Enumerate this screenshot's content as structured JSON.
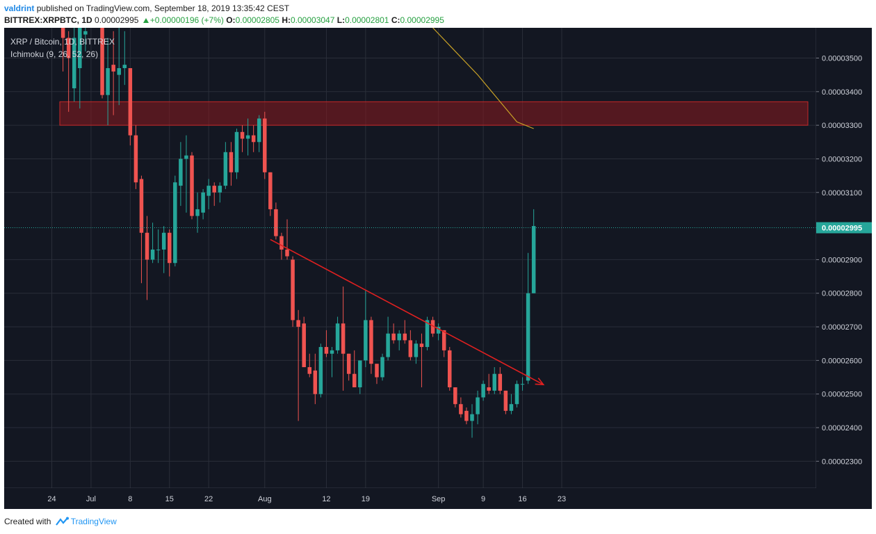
{
  "header": {
    "username": "valdrint",
    "published_text": "published on TradingView.com, September 18, 2019 13:35:42 CEST",
    "symbol": "BITTREX:XRPBTC, 1D",
    "price": "0.00002995",
    "change": "+0.00000196 (+7%)",
    "open_label": "O:",
    "open": "0.00002805",
    "high_label": "H:",
    "high": "0.00003047",
    "low_label": "L:",
    "low": "0.00002801",
    "close_label": "C:",
    "close": "0.00002995"
  },
  "footer": {
    "created_with": "Created with",
    "brand": "TradingView"
  },
  "chart_data": {
    "type": "candlestick",
    "title": "XRP / Bitcoin, 1D, BITTREX",
    "indicator": "Ichimoku (9, 26, 52, 26)",
    "ylim": [
      2.22e-05,
      3.59e-05
    ],
    "y_ticks": [
      "0.00003500",
      "0.00003400",
      "0.00003300",
      "0.00003200",
      "0.00003100",
      "0.00002900",
      "0.00002800",
      "0.00002700",
      "0.00002600",
      "0.00002500",
      "0.00002400",
      "0.00002300"
    ],
    "x_ticks": [
      {
        "label": "24",
        "date": "2019-06-24"
      },
      {
        "label": "Jul",
        "date": "2019-07-01"
      },
      {
        "label": "8",
        "date": "2019-07-08"
      },
      {
        "label": "15",
        "date": "2019-07-15"
      },
      {
        "label": "22",
        "date": "2019-07-22"
      },
      {
        "label": "Aug",
        "date": "2019-08-01"
      },
      {
        "label": "12",
        "date": "2019-08-12"
      },
      {
        "label": "19",
        "date": "2019-08-19"
      },
      {
        "label": "Sep",
        "date": "2019-09-01"
      },
      {
        "label": "9",
        "date": "2019-09-09"
      },
      {
        "label": "16",
        "date": "2019-09-16"
      },
      {
        "label": "23",
        "date": "2019-09-23"
      }
    ],
    "last_price": 2.995e-05,
    "last_price_label": "0.00002995",
    "resistance_zone": [
      3.3e-05,
      3.37e-05
    ],
    "trendline": [
      {
        "date": "2019-08-02",
        "value": 2.96e-05
      },
      {
        "date": "2019-09-18",
        "value": 2.53e-05
      }
    ],
    "cloud_line": [
      {
        "date": "2019-08-31",
        "value": 3.59e-05
      },
      {
        "date": "2019-09-04",
        "value": 3.52e-05
      },
      {
        "date": "2019-09-08",
        "value": 3.45e-05
      },
      {
        "date": "2019-09-12",
        "value": 3.37e-05
      },
      {
        "date": "2019-09-15",
        "value": 3.31e-05
      },
      {
        "date": "2019-09-18",
        "value": 3.29e-05
      }
    ],
    "colors": {
      "up": "#26a69a",
      "down": "#ef5350",
      "background": "#131722",
      "grid": "#2a2e39",
      "trendline": "#e02020",
      "zone": "#8b1a1f",
      "cloud_line": "#c9a227"
    },
    "candles": [
      {
        "date": "2019-06-26",
        "o": 3.59e-05,
        "h": 3.61e-05,
        "l": 3.46e-05,
        "c": 3.56e-05
      },
      {
        "date": "2019-06-27",
        "o": 3.56e-05,
        "h": 3.58e-05,
        "l": 3.34e-05,
        "c": 3.5e-05
      },
      {
        "date": "2019-06-28",
        "o": 3.41e-05,
        "h": 3.6e-05,
        "l": 3.37e-05,
        "c": 3.56e-05
      },
      {
        "date": "2019-06-29",
        "o": 3.47e-05,
        "h": 3.6e-05,
        "l": 3.35e-05,
        "c": 3.59e-05
      },
      {
        "date": "2019-06-30",
        "o": 3.57e-05,
        "h": 3.61e-05,
        "l": 3.52e-05,
        "c": 3.58e-05
      },
      {
        "date": "2019-07-03",
        "o": 3.61e-05,
        "h": 3.61e-05,
        "l": 3.38e-05,
        "c": 3.39e-05
      },
      {
        "date": "2019-07-04",
        "o": 3.39e-05,
        "h": 3.56e-05,
        "l": 3.3e-05,
        "c": 3.47e-05
      },
      {
        "date": "2019-07-05",
        "o": 3.48e-05,
        "h": 3.58e-05,
        "l": 3.33e-05,
        "c": 3.46e-05
      },
      {
        "date": "2019-07-06",
        "o": 3.45e-05,
        "h": 3.61e-05,
        "l": 3.36e-05,
        "c": 3.47e-05
      },
      {
        "date": "2019-07-07",
        "o": 3.47e-05,
        "h": 3.58e-05,
        "l": 3.42e-05,
        "c": 3.48e-05
      },
      {
        "date": "2019-07-08",
        "o": 3.47e-05,
        "h": 3.47e-05,
        "l": 3.24e-05,
        "c": 3.27e-05
      },
      {
        "date": "2019-07-09",
        "o": 3.27e-05,
        "h": 3.3e-05,
        "l": 3.11e-05,
        "c": 3.13e-05
      },
      {
        "date": "2019-07-10",
        "o": 3.14e-05,
        "h": 3.15e-05,
        "l": 2.83e-05,
        "c": 2.98e-05
      },
      {
        "date": "2019-07-11",
        "o": 2.98e-05,
        "h": 3.03e-05,
        "l": 2.78e-05,
        "c": 2.9e-05
      },
      {
        "date": "2019-07-12",
        "o": 2.9e-05,
        "h": 3.01e-05,
        "l": 2.89e-05,
        "c": 2.93e-05
      },
      {
        "date": "2019-07-13",
        "o": 2.93e-05,
        "h": 2.99e-05,
        "l": 2.89e-05,
        "c": 2.93e-05
      },
      {
        "date": "2019-07-14",
        "o": 2.93e-05,
        "h": 3e-05,
        "l": 2.86e-05,
        "c": 2.98e-05
      },
      {
        "date": "2019-07-15",
        "o": 2.98e-05,
        "h": 2.99e-05,
        "l": 2.85e-05,
        "c": 2.89e-05
      },
      {
        "date": "2019-07-16",
        "o": 2.89e-05,
        "h": 3.15e-05,
        "l": 2.88e-05,
        "c": 3.13e-05
      },
      {
        "date": "2019-07-17",
        "o": 3.12e-05,
        "h": 3.25e-05,
        "l": 3.06e-05,
        "c": 3.2e-05
      },
      {
        "date": "2019-07-18",
        "o": 3.2e-05,
        "h": 3.27e-05,
        "l": 3.04e-05,
        "c": 3.21e-05
      },
      {
        "date": "2019-07-19",
        "o": 3.21e-05,
        "h": 3.22e-05,
        "l": 3.02e-05,
        "c": 3.03e-05
      },
      {
        "date": "2019-07-20",
        "o": 3.03e-05,
        "h": 3.1e-05,
        "l": 2.98e-05,
        "c": 3.05e-05
      },
      {
        "date": "2019-07-21",
        "o": 3.04e-05,
        "h": 3.11e-05,
        "l": 3.02e-05,
        "c": 3.1e-05
      },
      {
        "date": "2019-07-22",
        "o": 3.09e-05,
        "h": 3.14e-05,
        "l": 3.05e-05,
        "c": 3.12e-05
      },
      {
        "date": "2019-07-23",
        "o": 3.12e-05,
        "h": 3.13e-05,
        "l": 3.06e-05,
        "c": 3.1e-05
      },
      {
        "date": "2019-07-24",
        "o": 3.1e-05,
        "h": 3.13e-05,
        "l": 3.07e-05,
        "c": 3.12e-05
      },
      {
        "date": "2019-07-25",
        "o": 3.12e-05,
        "h": 3.25e-05,
        "l": 3.11e-05,
        "c": 3.22e-05
      },
      {
        "date": "2019-07-26",
        "o": 3.22e-05,
        "h": 3.25e-05,
        "l": 3.12e-05,
        "c": 3.16e-05
      },
      {
        "date": "2019-07-27",
        "o": 3.16e-05,
        "h": 3.29e-05,
        "l": 3.14e-05,
        "c": 3.28e-05
      },
      {
        "date": "2019-07-28",
        "o": 3.28e-05,
        "h": 3.3e-05,
        "l": 3.22e-05,
        "c": 3.26e-05
      },
      {
        "date": "2019-07-29",
        "o": 3.26e-05,
        "h": 3.32e-05,
        "l": 3.21e-05,
        "c": 3.27e-05
      },
      {
        "date": "2019-07-30",
        "o": 3.27e-05,
        "h": 3.3e-05,
        "l": 3.22e-05,
        "c": 3.25e-05
      },
      {
        "date": "2019-07-31",
        "o": 3.25e-05,
        "h": 3.33e-05,
        "l": 3.22e-05,
        "c": 3.32e-05
      },
      {
        "date": "2019-08-01",
        "o": 3.32e-05,
        "h": 3.34e-05,
        "l": 3.14e-05,
        "c": 3.16e-05
      },
      {
        "date": "2019-08-02",
        "o": 3.16e-05,
        "h": 3.16e-05,
        "l": 3.03e-05,
        "c": 3.05e-05
      },
      {
        "date": "2019-08-03",
        "o": 3.05e-05,
        "h": 3.07e-05,
        "l": 2.96e-05,
        "c": 2.97e-05
      },
      {
        "date": "2019-08-04",
        "o": 2.97e-05,
        "h": 2.98e-05,
        "l": 2.9e-05,
        "c": 2.93e-05
      },
      {
        "date": "2019-08-05",
        "o": 2.93e-05,
        "h": 3.02e-05,
        "l": 2.9e-05,
        "c": 2.91e-05
      },
      {
        "date": "2019-08-06",
        "o": 2.9e-05,
        "h": 2.91e-05,
        "l": 2.7e-05,
        "c": 2.72e-05
      },
      {
        "date": "2019-08-07",
        "o": 2.72e-05,
        "h": 2.75e-05,
        "l": 2.42e-05,
        "c": 2.7e-05
      },
      {
        "date": "2019-08-08",
        "o": 2.71e-05,
        "h": 2.73e-05,
        "l": 2.58e-05,
        "c": 2.58e-05
      },
      {
        "date": "2019-08-09",
        "o": 2.58e-05,
        "h": 2.62e-05,
        "l": 2.55e-05,
        "c": 2.56e-05
      },
      {
        "date": "2019-08-10",
        "o": 2.57e-05,
        "h": 2.62e-05,
        "l": 2.47e-05,
        "c": 2.5e-05
      },
      {
        "date": "2019-08-11",
        "o": 2.5e-05,
        "h": 2.65e-05,
        "l": 2.49e-05,
        "c": 2.64e-05
      },
      {
        "date": "2019-08-12",
        "o": 2.64e-05,
        "h": 2.69e-05,
        "l": 2.61e-05,
        "c": 2.62e-05
      },
      {
        "date": "2019-08-13",
        "o": 2.62e-05,
        "h": 2.64e-05,
        "l": 2.55e-05,
        "c": 2.63e-05
      },
      {
        "date": "2019-08-14",
        "o": 2.63e-05,
        "h": 2.73e-05,
        "l": 2.62e-05,
        "c": 2.71e-05
      },
      {
        "date": "2019-08-15",
        "o": 2.71e-05,
        "h": 2.82e-05,
        "l": 2.51e-05,
        "c": 2.62e-05
      },
      {
        "date": "2019-08-16",
        "o": 2.62e-05,
        "h": 2.62e-05,
        "l": 2.54e-05,
        "c": 2.56e-05
      },
      {
        "date": "2019-08-17",
        "o": 2.56e-05,
        "h": 2.63e-05,
        "l": 2.52e-05,
        "c": 2.52e-05
      },
      {
        "date": "2019-08-18",
        "o": 2.52e-05,
        "h": 2.6e-05,
        "l": 2.5e-05,
        "c": 2.6e-05
      },
      {
        "date": "2019-08-19",
        "o": 2.6e-05,
        "h": 2.81e-05,
        "l": 2.58e-05,
        "c": 2.72e-05
      },
      {
        "date": "2019-08-20",
        "o": 2.72e-05,
        "h": 2.73e-05,
        "l": 2.56e-05,
        "c": 2.59e-05
      },
      {
        "date": "2019-08-21",
        "o": 2.59e-05,
        "h": 2.59e-05,
        "l": 2.53e-05,
        "c": 2.55e-05
      },
      {
        "date": "2019-08-22",
        "o": 2.55e-05,
        "h": 2.62e-05,
        "l": 2.54e-05,
        "c": 2.61e-05
      },
      {
        "date": "2019-08-23",
        "o": 2.61e-05,
        "h": 2.73e-05,
        "l": 2.6e-05,
        "c": 2.68e-05
      },
      {
        "date": "2019-08-24",
        "o": 2.68e-05,
        "h": 2.71e-05,
        "l": 2.65e-05,
        "c": 2.66e-05
      },
      {
        "date": "2019-08-25",
        "o": 2.66e-05,
        "h": 2.69e-05,
        "l": 2.63e-05,
        "c": 2.68e-05
      },
      {
        "date": "2019-08-26",
        "o": 2.68e-05,
        "h": 2.72e-05,
        "l": 2.65e-05,
        "c": 2.66e-05
      },
      {
        "date": "2019-08-27",
        "o": 2.66e-05,
        "h": 2.69e-05,
        "l": 2.6e-05,
        "c": 2.61e-05
      },
      {
        "date": "2019-08-28",
        "o": 2.61e-05,
        "h": 2.66e-05,
        "l": 2.59e-05,
        "c": 2.65e-05
      },
      {
        "date": "2019-08-29",
        "o": 2.65e-05,
        "h": 2.68e-05,
        "l": 2.52e-05,
        "c": 2.64e-05
      },
      {
        "date": "2019-08-30",
        "o": 2.64e-05,
        "h": 2.73e-05,
        "l": 2.63e-05,
        "c": 2.72e-05
      },
      {
        "date": "2019-08-31",
        "o": 2.72e-05,
        "h": 2.73e-05,
        "l": 2.67e-05,
        "c": 2.68e-05
      },
      {
        "date": "2019-09-01",
        "o": 2.68e-05,
        "h": 2.71e-05,
        "l": 2.66e-05,
        "c": 2.7e-05
      },
      {
        "date": "2019-09-02",
        "o": 2.69e-05,
        "h": 2.69e-05,
        "l": 2.61e-05,
        "c": 2.63e-05
      },
      {
        "date": "2019-09-03",
        "o": 2.63e-05,
        "h": 2.64e-05,
        "l": 2.51e-05,
        "c": 2.52e-05
      },
      {
        "date": "2019-09-04",
        "o": 2.52e-05,
        "h": 2.52e-05,
        "l": 2.46e-05,
        "c": 2.47e-05
      },
      {
        "date": "2019-09-05",
        "o": 2.47e-05,
        "h": 2.49e-05,
        "l": 2.43e-05,
        "c": 2.44e-05
      },
      {
        "date": "2019-09-06",
        "o": 2.45e-05,
        "h": 2.46e-05,
        "l": 2.41e-05,
        "c": 2.42e-05
      },
      {
        "date": "2019-09-07",
        "o": 2.42e-05,
        "h": 2.47e-05,
        "l": 2.37e-05,
        "c": 2.44e-05
      },
      {
        "date": "2019-09-08",
        "o": 2.44e-05,
        "h": 2.51e-05,
        "l": 2.41e-05,
        "c": 2.49e-05
      },
      {
        "date": "2019-09-09",
        "o": 2.49e-05,
        "h": 2.54e-05,
        "l": 2.48e-05,
        "c": 2.53e-05
      },
      {
        "date": "2019-09-10",
        "o": 2.52e-05,
        "h": 2.56e-05,
        "l": 2.5e-05,
        "c": 2.51e-05
      },
      {
        "date": "2019-09-11",
        "o": 2.51e-05,
        "h": 2.58e-05,
        "l": 2.5e-05,
        "c": 2.56e-05
      },
      {
        "date": "2019-09-12",
        "o": 2.56e-05,
        "h": 2.58e-05,
        "l": 2.5e-05,
        "c": 2.51e-05
      },
      {
        "date": "2019-09-13",
        "o": 2.51e-05,
        "h": 2.51e-05,
        "l": 2.44e-05,
        "c": 2.45e-05
      },
      {
        "date": "2019-09-14",
        "o": 2.45e-05,
        "h": 2.5e-05,
        "l": 2.44e-05,
        "c": 2.47e-05
      },
      {
        "date": "2019-09-15",
        "o": 2.47e-05,
        "h": 2.54e-05,
        "l": 2.46e-05,
        "c": 2.53e-05
      },
      {
        "date": "2019-09-16",
        "o": 2.53e-05,
        "h": 2.55e-05,
        "l": 2.51e-05,
        "c": 2.53e-05
      },
      {
        "date": "2019-09-17",
        "o": 2.54e-05,
        "h": 2.92e-05,
        "l": 2.53e-05,
        "c": 2.8e-05
      },
      {
        "date": "2019-09-18",
        "o": 2.8e-05,
        "h": 3.05e-05,
        "l": 2.8e-05,
        "c": 3e-05
      }
    ]
  }
}
